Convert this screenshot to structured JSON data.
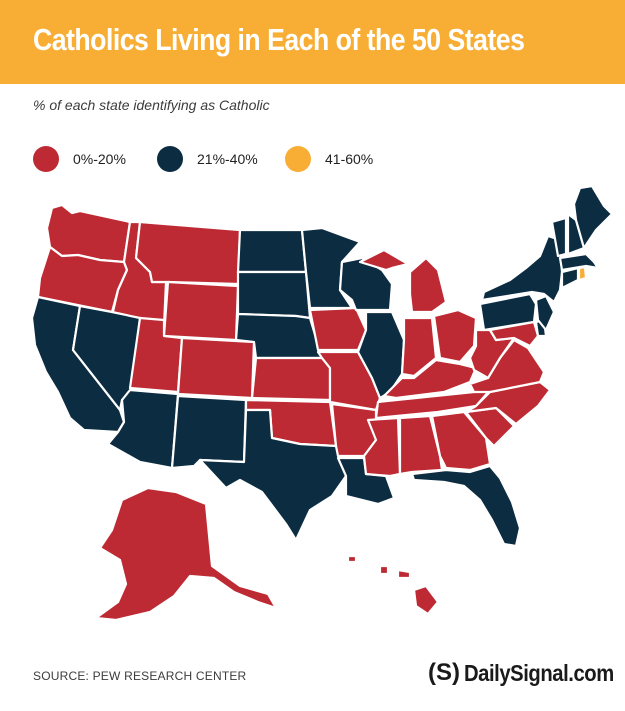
{
  "header": {
    "title": "Catholics Living in Each of the 50 States"
  },
  "subtitle": "% of each state identifying as Catholic",
  "legend": {
    "items": [
      {
        "label": "0%-20%",
        "color": "#be2a33"
      },
      {
        "label": "21%-40%",
        "color": "#0c2c42"
      },
      {
        "label": "41-60%",
        "color": "#f8ae35"
      }
    ]
  },
  "map_data": {
    "type": "choropleth",
    "region": "United States",
    "colors": {
      "0%-20%": "#be2a33",
      "21%-40%": "#0c2c42",
      "41-60%": "#f8ae35"
    },
    "states": {
      "Washington": "0%-20%",
      "Oregon": "0%-20%",
      "Idaho": "0%-20%",
      "Montana": "0%-20%",
      "Wyoming": "0%-20%",
      "Utah": "0%-20%",
      "Colorado": "0%-20%",
      "Kansas": "0%-20%",
      "Oklahoma": "0%-20%",
      "Iowa": "0%-20%",
      "Missouri": "0%-20%",
      "Arkansas": "0%-20%",
      "Mississippi": "0%-20%",
      "Alabama": "0%-20%",
      "Georgia": "0%-20%",
      "Tennessee": "0%-20%",
      "Kentucky": "0%-20%",
      "Indiana": "0%-20%",
      "Michigan": "0%-20%",
      "Ohio": "0%-20%",
      "West Virginia": "0%-20%",
      "Virginia": "0%-20%",
      "North Carolina": "0%-20%",
      "South Carolina": "0%-20%",
      "Maryland": "0%-20%",
      "Alaska": "0%-20%",
      "Hawaii": "0%-20%",
      "California": "21%-40%",
      "Nevada": "21%-40%",
      "Arizona": "21%-40%",
      "New Mexico": "21%-40%",
      "Texas": "21%-40%",
      "North Dakota": "21%-40%",
      "South Dakota": "21%-40%",
      "Nebraska": "21%-40%",
      "Minnesota": "21%-40%",
      "Wisconsin": "21%-40%",
      "Illinois": "21%-40%",
      "Louisiana": "21%-40%",
      "Florida": "21%-40%",
      "Pennsylvania": "21%-40%",
      "New York": "21%-40%",
      "New Jersey": "21%-40%",
      "Delaware": "21%-40%",
      "Connecticut": "21%-40%",
      "Massachusetts": "21%-40%",
      "Vermont": "21%-40%",
      "New Hampshire": "21%-40%",
      "Maine": "21%-40%",
      "Rhode Island": "41-60%"
    }
  },
  "footer": {
    "source": "SOURCE: PEW RESEARCH CENTER",
    "brand_mark": "(S)",
    "brand_name": "DailySignal.com"
  }
}
